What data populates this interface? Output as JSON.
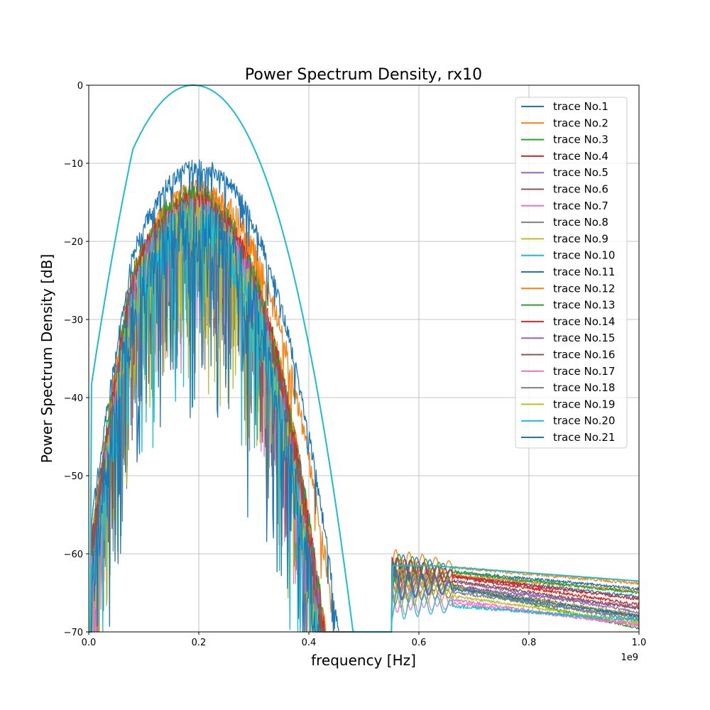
{
  "chart_data": {
    "type": "line",
    "title": "Power Spectrum Density, rx10",
    "xlabel": "frequency [Hz]",
    "ylabel": "Power Spectrum Density [dB]",
    "x_offset_label": "1e9",
    "xlim": [
      0.0,
      1.0
    ],
    "ylim": [
      -70,
      0
    ],
    "x_ticks": [
      0.0,
      0.2,
      0.4,
      0.6,
      0.8,
      1.0
    ],
    "x_tick_labels": [
      "0.0",
      "0.2",
      "0.4",
      "0.6",
      "0.8",
      "1.0"
    ],
    "y_ticks": [
      0,
      -10,
      -20,
      -30,
      -40,
      -50,
      -60,
      -70
    ],
    "y_tick_labels": [
      "0",
      "−10",
      "−20",
      "−30",
      "−40",
      "−50",
      "−60",
      "−70"
    ],
    "grid": true,
    "legend_position": "top-right",
    "series": [
      {
        "name": "trace No.1",
        "color": "#1f77b4",
        "peak": -16.0,
        "center": 0.19,
        "width": 0.3,
        "tail_start": -62.5,
        "tail_end": -65.5,
        "noise": 8
      },
      {
        "name": "trace No.2",
        "color": "#ff7f0e",
        "peak": -13.5,
        "center": 0.2,
        "width": 0.31,
        "tail_start": -61.5,
        "tail_end": -63.8,
        "noise": 4
      },
      {
        "name": "trace No.3",
        "color": "#2ca02c",
        "peak": -15.0,
        "center": 0.19,
        "width": 0.3,
        "tail_start": -63.5,
        "tail_end": -69.5,
        "noise": 6
      },
      {
        "name": "trace No.4",
        "color": "#d62728",
        "peak": -16.0,
        "center": 0.19,
        "width": 0.3,
        "tail_start": -62.5,
        "tail_end": -66.5,
        "noise": 7
      },
      {
        "name": "trace No.5",
        "color": "#9467bd",
        "peak": -16.0,
        "center": 0.19,
        "width": 0.3,
        "tail_start": -63.0,
        "tail_end": -67.5,
        "noise": 7
      },
      {
        "name": "trace No.6",
        "color": "#8c564b",
        "peak": -16.5,
        "center": 0.19,
        "width": 0.3,
        "tail_start": -63.5,
        "tail_end": -68.0,
        "noise": 8
      },
      {
        "name": "trace No.7",
        "color": "#e377c2",
        "peak": -17.0,
        "center": 0.19,
        "width": 0.29,
        "tail_start": -66.0,
        "tail_end": -69.0,
        "noise": 8
      },
      {
        "name": "trace No.8",
        "color": "#7f7f7f",
        "peak": -17.0,
        "center": 0.19,
        "width": 0.29,
        "tail_start": -64.0,
        "tail_end": -68.5,
        "noise": 8
      },
      {
        "name": "trace No.9",
        "color": "#bcbd22",
        "peak": -17.5,
        "center": 0.19,
        "width": 0.29,
        "tail_start": -65.0,
        "tail_end": -68.8,
        "noise": 9
      },
      {
        "name": "trace No.10",
        "color": "#17becf",
        "peak": 0.0,
        "center": 0.19,
        "width": 0.33,
        "tail_start": -61.5,
        "tail_end": -63.5,
        "noise": 0
      },
      {
        "name": "trace No.11",
        "color": "#1f77b4",
        "peak": -10.5,
        "center": 0.2,
        "width": 0.31,
        "tail_start": -62.0,
        "tail_end": -64.5,
        "noise": 3
      },
      {
        "name": "trace No.12",
        "color": "#ff7f0e",
        "peak": -14.5,
        "center": 0.19,
        "width": 0.3,
        "tail_start": -62.5,
        "tail_end": -64.8,
        "noise": 5
      },
      {
        "name": "trace No.13",
        "color": "#2ca02c",
        "peak": -15.0,
        "center": 0.19,
        "width": 0.3,
        "tail_start": -62.0,
        "tail_end": -65.0,
        "noise": 6
      },
      {
        "name": "trace No.14",
        "color": "#d62728",
        "peak": -15.5,
        "center": 0.19,
        "width": 0.3,
        "tail_start": -62.5,
        "tail_end": -65.8,
        "noise": 6
      },
      {
        "name": "trace No.15",
        "color": "#9467bd",
        "peak": -16.5,
        "center": 0.19,
        "width": 0.3,
        "tail_start": -64.0,
        "tail_end": -66.8,
        "noise": 7
      },
      {
        "name": "trace No.16",
        "color": "#8c564b",
        "peak": -16.5,
        "center": 0.19,
        "width": 0.3,
        "tail_start": -63.0,
        "tail_end": -67.0,
        "noise": 8
      },
      {
        "name": "trace No.17",
        "color": "#e377c2",
        "peak": -17.0,
        "center": 0.19,
        "width": 0.29,
        "tail_start": -65.5,
        "tail_end": -69.2,
        "noise": 8
      },
      {
        "name": "trace No.18",
        "color": "#7f7f7f",
        "peak": -17.5,
        "center": 0.19,
        "width": 0.29,
        "tail_start": -64.5,
        "tail_end": -68.2,
        "noise": 9
      },
      {
        "name": "trace No.19",
        "color": "#bcbd22",
        "peak": -17.5,
        "center": 0.19,
        "width": 0.29,
        "tail_start": -64.0,
        "tail_end": -67.8,
        "noise": 9
      },
      {
        "name": "trace No.20",
        "color": "#17becf",
        "peak": -18.0,
        "center": 0.19,
        "width": 0.29,
        "tail_start": -66.5,
        "tail_end": -68.5,
        "noise": 10
      },
      {
        "name": "trace No.21",
        "color": "#1f77b4",
        "peak": -18.5,
        "center": 0.19,
        "width": 0.29,
        "tail_start": -64.0,
        "tail_end": -68.0,
        "noise": 12
      }
    ]
  }
}
